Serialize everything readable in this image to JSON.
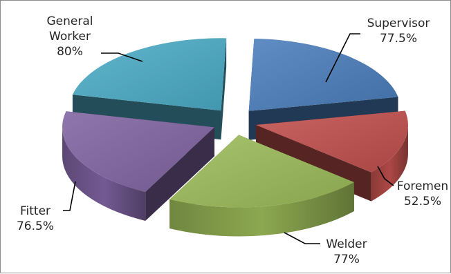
{
  "chart_data": {
    "type": "pie",
    "title": "",
    "exploded": true,
    "three_d": true,
    "legend": "none",
    "categories": [
      "Supervisor",
      "Foremen",
      "Welder",
      "Fitter",
      "General Worker"
    ],
    "values": [
      77.5,
      52.5,
      77,
      76.5,
      80
    ],
    "value_labels": [
      "77.5%",
      "52.5%",
      "77%",
      "76.5%",
      "80%"
    ],
    "label_lines": [
      [
        "Supervisor",
        "77.5%"
      ],
      [
        "Foremen",
        "52.5%"
      ],
      [
        "Welder",
        "77%"
      ],
      [
        "Fitter",
        "76.5%"
      ],
      [
        "General",
        "Worker",
        "80%"
      ]
    ],
    "colors": [
      "#4a7ebb",
      "#c0504d",
      "#9bbb59",
      "#8064a2",
      "#4bacc6"
    ]
  }
}
